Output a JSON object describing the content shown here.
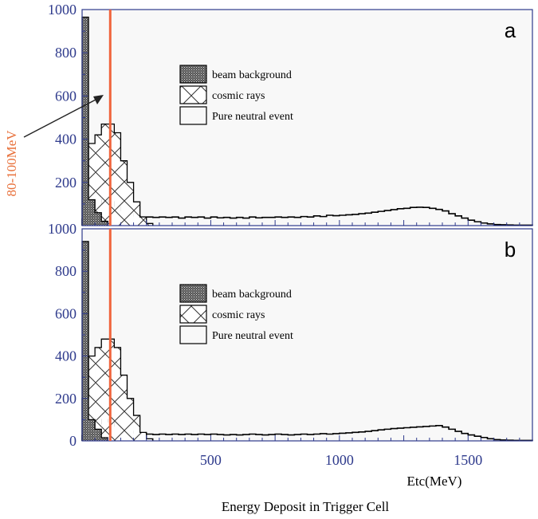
{
  "figure": {
    "x_title": "Energy Deposit in Trigger Cell",
    "cut_label": "80-100MeV",
    "cut_color": "#f0643c",
    "axis_color": "#2e3a8c"
  },
  "chart_data": [
    {
      "type": "bar",
      "panel_label": "a",
      "xlabel": "",
      "ylabel": "",
      "xlim": [
        0,
        1750
      ],
      "ylim": [
        0,
        1000
      ],
      "y_ticks": [
        200,
        400,
        600,
        800,
        1000
      ],
      "x_ticks": [],
      "cut_energy": 100,
      "legend": [
        "beam background",
        "cosmic rays",
        "Pure neutral event"
      ],
      "bin_width": 25,
      "series": [
        {
          "name": "beam background",
          "style": "dense",
          "x": [
            0,
            25,
            50,
            75
          ],
          "values": [
            965,
            120,
            60,
            20
          ]
        },
        {
          "name": "cosmic rays",
          "style": "cross",
          "x": [
            0,
            25,
            50,
            75,
            100,
            125,
            150,
            175,
            200,
            225,
            250
          ],
          "values": [
            180,
            380,
            420,
            470,
            470,
            430,
            300,
            200,
            110,
            40,
            10
          ]
        },
        {
          "name": "Pure neutral event",
          "style": "open",
          "x": [
            0,
            25,
            50,
            75,
            100,
            125,
            150,
            175,
            200,
            225,
            250,
            275,
            300,
            325,
            350,
            375,
            400,
            425,
            450,
            475,
            500,
            525,
            550,
            575,
            600,
            625,
            650,
            675,
            700,
            725,
            750,
            775,
            800,
            825,
            850,
            875,
            900,
            925,
            950,
            975,
            1000,
            1025,
            1050,
            1075,
            1100,
            1125,
            1150,
            1175,
            1200,
            1225,
            1250,
            1275,
            1300,
            1325,
            1350,
            1375,
            1400,
            1425,
            1450,
            1475,
            1500,
            1525,
            1550,
            1575,
            1600,
            1625,
            1650,
            1675,
            1700,
            1725
          ],
          "values": [
            30,
            60,
            100,
            120,
            110,
            90,
            70,
            55,
            45,
            40,
            40,
            38,
            40,
            38,
            40,
            35,
            40,
            38,
            40,
            35,
            40,
            36,
            38,
            35,
            38,
            35,
            40,
            36,
            38,
            38,
            40,
            38,
            40,
            38,
            42,
            40,
            45,
            42,
            48,
            46,
            48,
            50,
            52,
            55,
            58,
            62,
            66,
            70,
            74,
            78,
            80,
            84,
            85,
            84,
            80,
            75,
            68,
            55,
            45,
            35,
            25,
            18,
            12,
            8,
            5,
            4,
            3,
            2,
            2,
            2
          ]
        }
      ]
    },
    {
      "type": "bar",
      "panel_label": "b",
      "xlabel": "Etc(MeV)",
      "ylabel": "",
      "xlim": [
        0,
        1750
      ],
      "ylim": [
        0,
        1000
      ],
      "y_ticks": [
        0,
        200,
        400,
        600,
        800,
        1000
      ],
      "x_ticks": [
        500,
        1000,
        1500
      ],
      "cut_energy": 100,
      "legend": [
        "beam background",
        "cosmic rays",
        "Pure neutral event"
      ],
      "bin_width": 25,
      "series": [
        {
          "name": "beam background",
          "style": "dense",
          "x": [
            0,
            25,
            50,
            75
          ],
          "values": [
            940,
            100,
            55,
            15
          ]
        },
        {
          "name": "cosmic rays",
          "style": "cross",
          "x": [
            0,
            25,
            50,
            75,
            100,
            125,
            150,
            175,
            200,
            225,
            250
          ],
          "values": [
            200,
            400,
            440,
            480,
            480,
            440,
            310,
            200,
            120,
            40,
            10
          ]
        },
        {
          "name": "Pure neutral event",
          "style": "open",
          "x": [
            0,
            25,
            50,
            75,
            100,
            125,
            150,
            175,
            200,
            225,
            250,
            275,
            300,
            325,
            350,
            375,
            400,
            425,
            450,
            475,
            500,
            525,
            550,
            575,
            600,
            625,
            650,
            675,
            700,
            725,
            750,
            775,
            800,
            825,
            850,
            875,
            900,
            925,
            950,
            975,
            1000,
            1025,
            1050,
            1075,
            1100,
            1125,
            1150,
            1175,
            1200,
            1225,
            1250,
            1275,
            1300,
            1325,
            1350,
            1375,
            1400,
            1425,
            1450,
            1475,
            1500,
            1525,
            1550,
            1575,
            1600,
            1625,
            1650,
            1675,
            1700,
            1725
          ],
          "values": [
            25,
            50,
            80,
            100,
            90,
            70,
            55,
            45,
            38,
            35,
            32,
            30,
            32,
            30,
            32,
            30,
            32,
            30,
            32,
            30,
            32,
            30,
            28,
            30,
            28,
            30,
            32,
            30,
            28,
            30,
            32,
            30,
            28,
            30,
            32,
            30,
            32,
            34,
            32,
            34,
            36,
            38,
            40,
            42,
            45,
            48,
            52,
            55,
            58,
            60,
            62,
            64,
            66,
            68,
            70,
            72,
            65,
            55,
            45,
            35,
            28,
            22,
            16,
            10,
            6,
            4,
            3,
            2,
            2,
            2
          ]
        }
      ]
    }
  ]
}
